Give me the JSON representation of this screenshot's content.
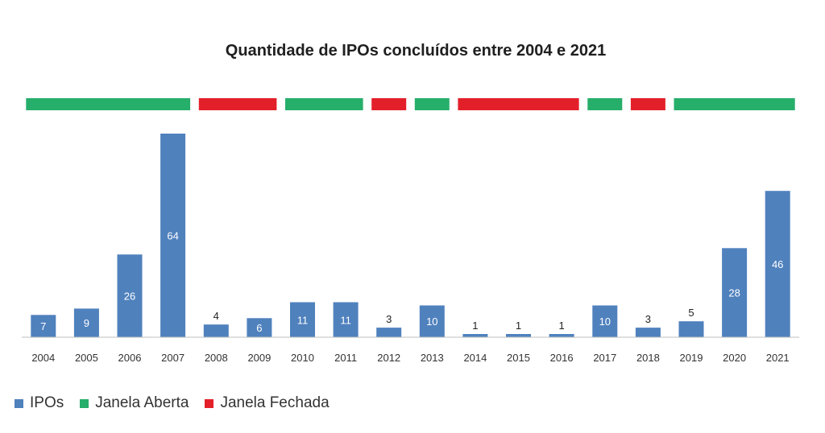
{
  "chart_data": {
    "type": "bar",
    "title": "Quantidade de IPOs concluídos entre 2004 e 2021",
    "xlabel": "",
    "ylabel": "",
    "ylim": [
      0,
      64
    ],
    "grid": false,
    "legend_position": "bottom-left",
    "categories": [
      "2004",
      "2005",
      "2006",
      "2007",
      "2008",
      "2009",
      "2010",
      "2011",
      "2012",
      "2013",
      "2014",
      "2015",
      "2016",
      "2017",
      "2018",
      "2019",
      "2020",
      "2021"
    ],
    "series": [
      {
        "name": "IPOs",
        "color": "#4f81bd",
        "values": [
          7,
          9,
          26,
          64,
          4,
          6,
          11,
          11,
          3,
          10,
          1,
          1,
          1,
          10,
          3,
          5,
          28,
          46
        ]
      }
    ],
    "windows": [
      {
        "status": "Janela Aberta",
        "from": "2004",
        "to": "2007"
      },
      {
        "status": "Janela Fechada",
        "from": "2008",
        "to": "2009"
      },
      {
        "status": "Janela Aberta",
        "from": "2010",
        "to": "2011"
      },
      {
        "status": "Janela Fechada",
        "from": "2012",
        "to": "2012"
      },
      {
        "status": "Janela Aberta",
        "from": "2013",
        "to": "2013"
      },
      {
        "status": "Janela Fechada",
        "from": "2014",
        "to": "2016"
      },
      {
        "status": "Janela Aberta",
        "from": "2017",
        "to": "2017"
      },
      {
        "status": "Janela Fechada",
        "from": "2018",
        "to": "2018"
      },
      {
        "status": "Janela Aberta",
        "from": "2019",
        "to": "2021"
      }
    ],
    "legend": [
      {
        "label": "IPOs",
        "color": "#4f81bd"
      },
      {
        "label": "Janela Aberta",
        "color": "#26ae6b"
      },
      {
        "label": "Janela Fechada",
        "color": "#e3202a"
      }
    ]
  }
}
